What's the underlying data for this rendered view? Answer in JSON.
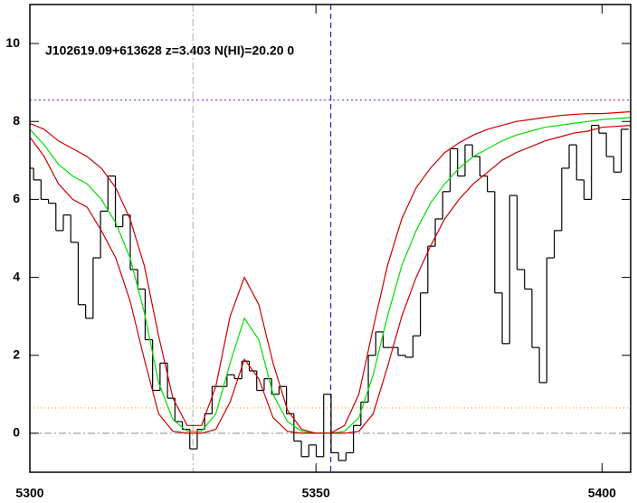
{
  "chart_data": {
    "type": "line",
    "title": "J102619.09+613628 z=3.403 N(HI)=20.20 0",
    "xlim": [
      5300,
      5405
    ],
    "ylim": [
      -1,
      11
    ],
    "xticks": [
      5300,
      5350,
      5400
    ],
    "yticks": [
      0,
      2,
      4,
      6,
      8,
      10
    ],
    "series": [
      {
        "color": "#000000",
        "step": true,
        "x": [
          5300,
          5301.3,
          5302.6,
          5303.9,
          5305.2,
          5306.5,
          5307.8,
          5309.1,
          5310.4,
          5311.7,
          5313,
          5314.3,
          5315.6,
          5316.9,
          5318.2,
          5319.5,
          5320.8,
          5322.1,
          5323.4,
          5324.7,
          5326,
          5327.3,
          5328.6,
          5329.9,
          5331.2,
          5332.5,
          5333.8,
          5335.1,
          5336.4,
          5337.7,
          5339,
          5340.3,
          5341.6,
          5342.9,
          5344.2,
          5345.5,
          5346.8,
          5348.1,
          5349.4,
          5350.7,
          5352,
          5353.3,
          5354.6,
          5355.9,
          5357.2,
          5358.5,
          5359.8,
          5361.1,
          5362.4,
          5363.7,
          5365,
          5366.3,
          5367.6,
          5368.9,
          5370.2,
          5371.5,
          5372.8,
          5374.1,
          5375.4,
          5376.7,
          5378,
          5379.3,
          5380.6,
          5381.9,
          5383.2,
          5384.5,
          5385.8,
          5387.1,
          5388.4,
          5389.7,
          5391,
          5392.3,
          5393.6,
          5394.9,
          5396.2,
          5397.5,
          5398.8,
          5400.1,
          5401.4,
          5402.7,
          5404
        ],
        "values": [
          6.8,
          6.5,
          6.0,
          5.9,
          5.2,
          5.6,
          4.9,
          3.3,
          2.95,
          4.5,
          5.7,
          6.6,
          5.3,
          5.6,
          4.2,
          3.7,
          2.4,
          1.1,
          1.8,
          0.9,
          0.3,
          0.1,
          -0.4,
          0.1,
          0.5,
          1.2,
          1.2,
          1.5,
          1.4,
          1.85,
          1.6,
          1.1,
          1.4,
          1.0,
          1.2,
          0.5,
          -0.2,
          -0.6,
          -0.3,
          -0.6,
          1.0,
          -0.5,
          -0.7,
          -0.5,
          0.2,
          0.8,
          2.0,
          2.6,
          2.2,
          2.2,
          2.0,
          1.95,
          2.5,
          3.6,
          4.8,
          5.5,
          6.2,
          7.3,
          6.6,
          7.4,
          7.1,
          6.6,
          6.2,
          3.6,
          2.3,
          6.1,
          4.2,
          3.7,
          2.2,
          1.3,
          4.5,
          5.2,
          6.8,
          7.4,
          6.5,
          6.0,
          7.9,
          7.7,
          7.1,
          6.7,
          7.8
        ]
      },
      {
        "color": "#00dd00",
        "x": [
          5300,
          5302.5,
          5305,
          5307.5,
          5310,
          5312.5,
          5315,
          5317.5,
          5320,
          5322.5,
          5325,
          5327.5,
          5330,
          5332.5,
          5335,
          5337.5,
          5340,
          5342.5,
          5345,
          5347.5,
          5350,
          5352.5,
          5355,
          5357.5,
          5360,
          5362.5,
          5365,
          5367.5,
          5370,
          5372.5,
          5375,
          5377.5,
          5380,
          5382.5,
          5385,
          5387.5,
          5390,
          5392.5,
          5395,
          5397.5,
          5400,
          5405
        ],
        "values": [
          7.8,
          7.4,
          6.9,
          6.6,
          6.4,
          6.0,
          5.4,
          4.5,
          3.1,
          1.3,
          0.35,
          0.05,
          0.05,
          0.5,
          1.8,
          2.95,
          2.4,
          1.0,
          0.3,
          0.05,
          0.0,
          0.0,
          0.05,
          0.4,
          1.5,
          3.0,
          4.3,
          5.2,
          5.9,
          6.4,
          6.8,
          7.1,
          7.3,
          7.5,
          7.65,
          7.75,
          7.85,
          7.9,
          7.95,
          8.0,
          8.05,
          8.1
        ]
      },
      {
        "color": "#cc0000",
        "x": [
          5300,
          5302.5,
          5305,
          5307.5,
          5310,
          5312.5,
          5315,
          5317.5,
          5320,
          5322.5,
          5325,
          5327.5,
          5330,
          5332.5,
          5335,
          5337.5,
          5340,
          5342.5,
          5345,
          5347.5,
          5350,
          5352.5,
          5355,
          5357.5,
          5360,
          5362.5,
          5365,
          5367.5,
          5370,
          5372.5,
          5375,
          5377.5,
          5380,
          5382.5,
          5385,
          5387.5,
          5390,
          5392.5,
          5395,
          5397.5,
          5400,
          5405
        ],
        "values": [
          7.95,
          7.8,
          7.5,
          7.3,
          7.1,
          6.8,
          6.3,
          5.5,
          4.3,
          2.5,
          0.9,
          0.2,
          0.2,
          1.2,
          3.0,
          4.0,
          3.3,
          1.8,
          0.6,
          0.1,
          0.0,
          0.0,
          0.2,
          1.0,
          2.7,
          4.3,
          5.5,
          6.3,
          6.8,
          7.2,
          7.45,
          7.65,
          7.8,
          7.9,
          8.0,
          8.05,
          8.1,
          8.15,
          8.18,
          8.2,
          8.2,
          8.25
        ]
      },
      {
        "color": "#cc0000",
        "x": [
          5300,
          5302.5,
          5305,
          5307.5,
          5310,
          5312.5,
          5315,
          5317.5,
          5320,
          5322.5,
          5325,
          5327.5,
          5330,
          5332.5,
          5335,
          5337.5,
          5340,
          5342.5,
          5345,
          5347.5,
          5350,
          5352.5,
          5355,
          5357.5,
          5360,
          5362.5,
          5365,
          5367.5,
          5370,
          5372.5,
          5375,
          5377.5,
          5380,
          5382.5,
          5385,
          5387.5,
          5390,
          5392.5,
          5395,
          5397.5,
          5400,
          5405
        ],
        "values": [
          7.6,
          7.1,
          6.4,
          6.0,
          5.8,
          5.2,
          4.5,
          3.4,
          1.9,
          0.5,
          0.05,
          0.0,
          0.0,
          0.1,
          0.8,
          1.9,
          1.4,
          0.4,
          0.05,
          0.0,
          0.0,
          0.0,
          0.0,
          0.05,
          0.5,
          1.7,
          3.0,
          4.0,
          4.8,
          5.5,
          6.0,
          6.4,
          6.7,
          7.0,
          7.2,
          7.35,
          7.5,
          7.6,
          7.7,
          7.75,
          7.85,
          7.9
        ]
      }
    ],
    "hlines": [
      {
        "value": 8.55,
        "color": "#a020f0",
        "dash": "2 3"
      },
      {
        "value": 0.65,
        "color": "#ff9900",
        "dash": "1 3"
      },
      {
        "value": 0,
        "color": "#999999",
        "dash": "8 3 2 3"
      }
    ],
    "vlines": [
      {
        "value": 5328.5,
        "color": "#aaaaaa",
        "dash": "8 3 2 3"
      },
      {
        "value": 5352.6,
        "color": "#0000cc",
        "dash": "6 4"
      }
    ]
  }
}
